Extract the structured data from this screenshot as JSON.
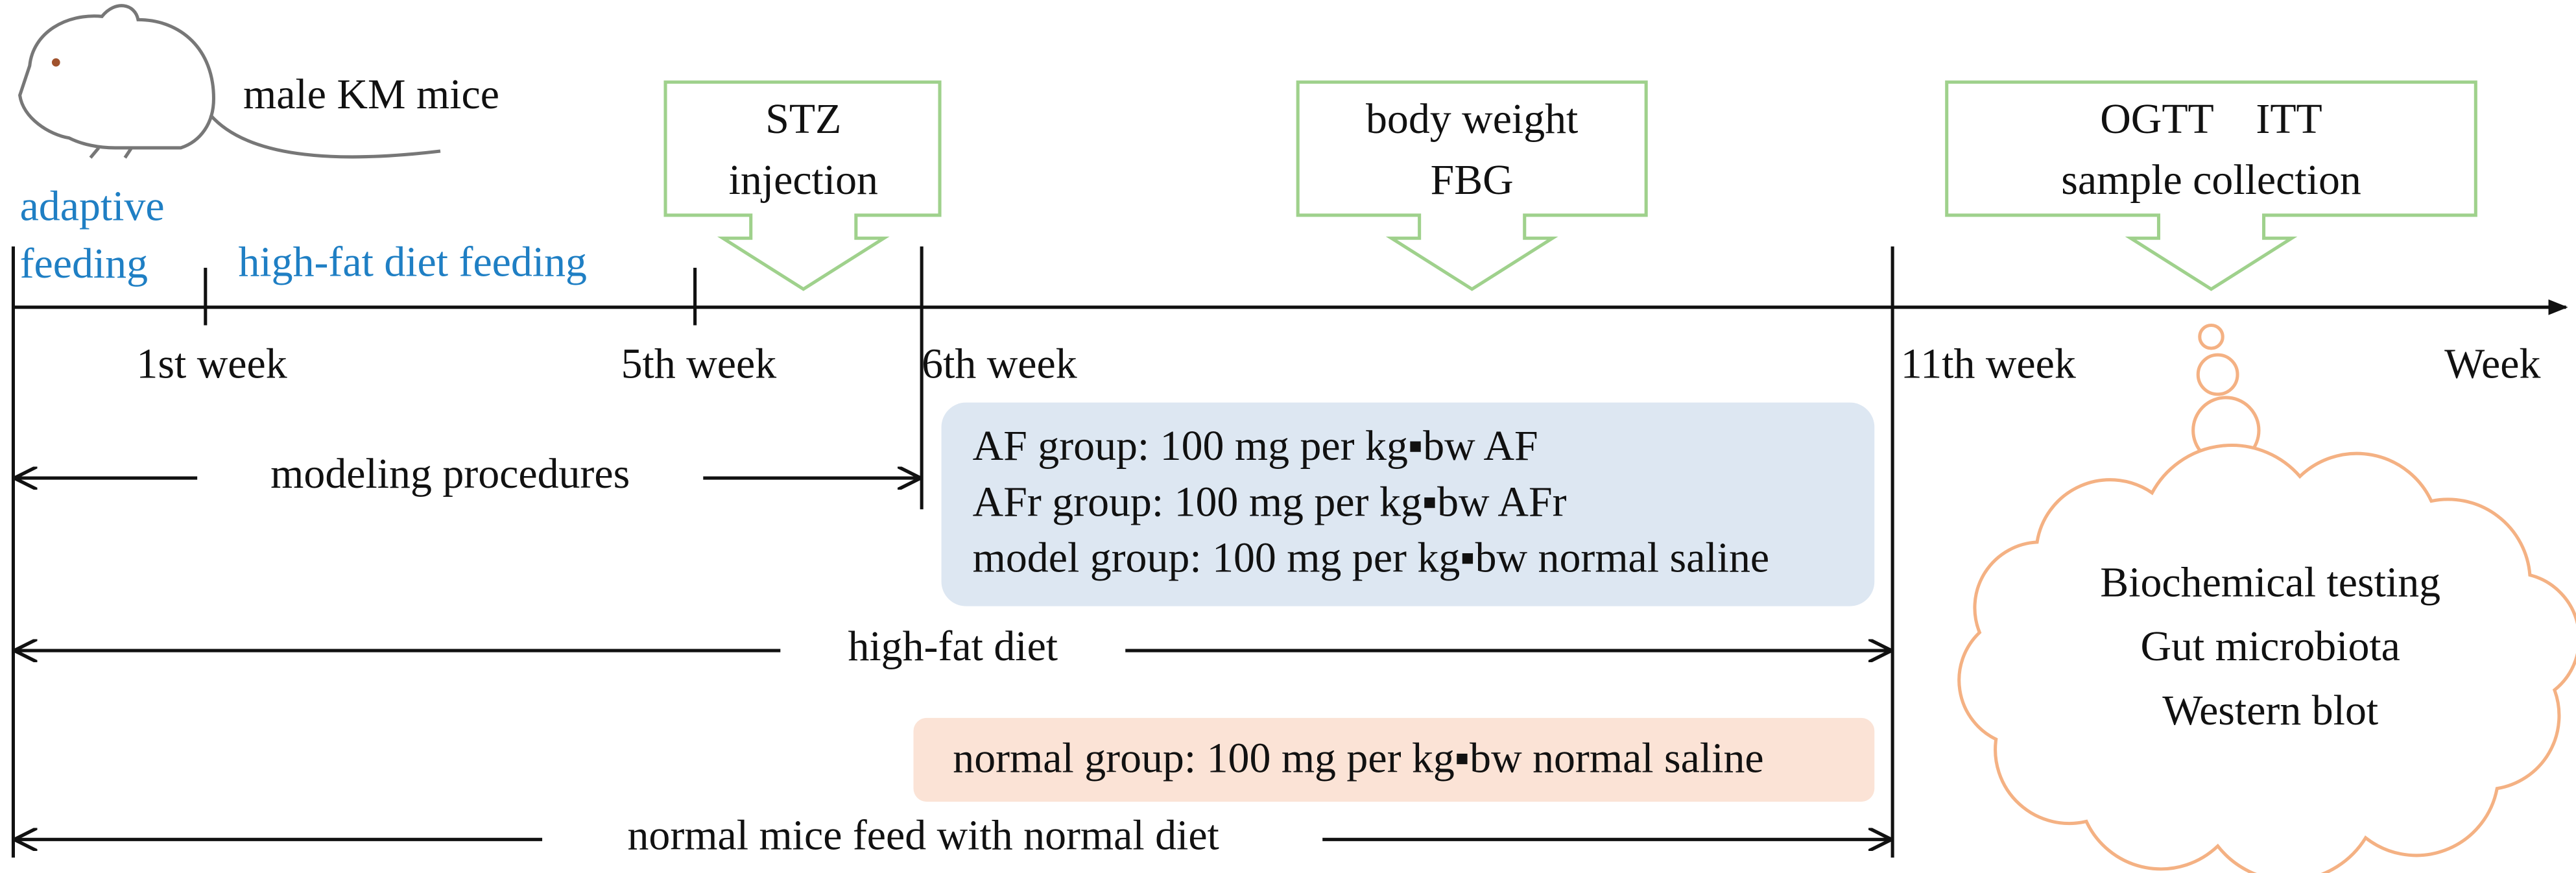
{
  "subject": {
    "label": "male KM mice"
  },
  "phases": [
    {
      "lines": [
        "adaptive",
        "feeding"
      ]
    },
    {
      "lines": [
        "high-fat diet feeding"
      ]
    }
  ],
  "timeline": {
    "ticks": [
      "1st week",
      "5th week",
      "6th week",
      "11th week"
    ],
    "unit": "Week"
  },
  "events": [
    {
      "lines": [
        "STZ",
        "injection"
      ]
    },
    {
      "lines": [
        "body weight",
        "FBG"
      ]
    },
    {
      "lines": [
        "OGTT    ITT",
        "sample collection"
      ]
    }
  ],
  "spans": [
    "modeling procedures",
    "high-fat diet",
    "normal mice feed with normal diet"
  ],
  "groups": {
    "treated": [
      "AF group: 100 mg per kg▪bw AF",
      "AFr group: 100 mg per kg▪bw AFr",
      "model group: 100 mg per kg▪bw normal saline"
    ],
    "normal": "normal group: 100 mg per kg▪bw normal saline"
  },
  "analyses": [
    "Biochemical testing",
    "Gut microbiota",
    "Western blot"
  ]
}
